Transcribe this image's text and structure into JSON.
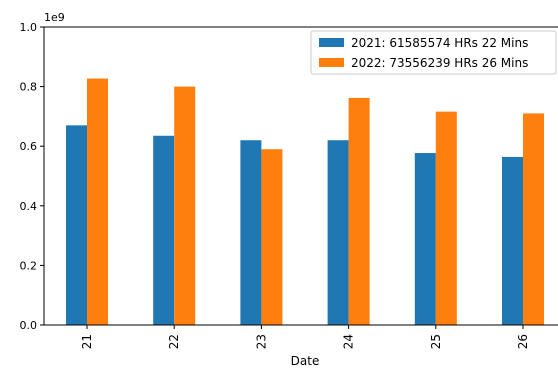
{
  "chart_data": {
    "type": "bar",
    "xlabel": "Date",
    "ylabel": "",
    "offset_label": "1e9",
    "ylim": [
      0,
      1.0
    ],
    "scale": 1000000000,
    "yticks": [
      "0.0",
      "0.2",
      "0.4",
      "0.6",
      "0.8",
      "1.0"
    ],
    "ytick_values": [
      0.0,
      0.2,
      0.4,
      0.6,
      0.8,
      1.0
    ],
    "categories": [
      "21",
      "22",
      "23",
      "24",
      "25",
      "26"
    ],
    "series": [
      {
        "name": "2021: 61585574 HRs 22 Mins",
        "color": "#1f77b4",
        "values": [
          670000000,
          635000000,
          620000000,
          620000000,
          577000000,
          564000000
        ]
      },
      {
        "name": "2022: 73556239 HRs 26 Mins",
        "color": "#ff7f0e",
        "values": [
          827000000,
          800000000,
          590000000,
          762000000,
          716000000,
          710000000
        ]
      }
    ],
    "legend_position": "top-right",
    "grid": false
  }
}
